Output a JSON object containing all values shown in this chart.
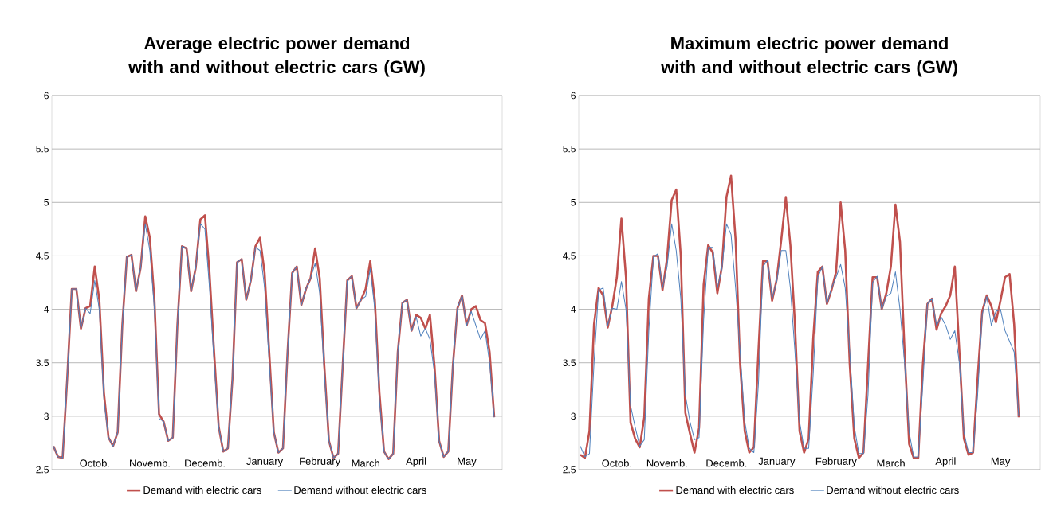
{
  "chart_data": [
    {
      "type": "line",
      "title": "Average electric power demand with and without electric cars (GW)",
      "categories": [
        null,
        null,
        null,
        null,
        null,
        null,
        null,
        null,
        null,
        "Octob.",
        null,
        null,
        null,
        null,
        null,
        null,
        null,
        null,
        null,
        null,
        null,
        "Novemb.",
        null,
        null,
        null,
        null,
        null,
        null,
        null,
        null,
        null,
        null,
        null,
        "Decemb.",
        null,
        null,
        null,
        null,
        null,
        null,
        null,
        null,
        null,
        null,
        null,
        null,
        "January",
        null,
        null,
        null,
        null,
        null,
        null,
        null,
        null,
        null,
        null,
        null,
        "February",
        null,
        null,
        null,
        null,
        null,
        null,
        null,
        null,
        null,
        "March",
        null,
        null,
        null,
        null,
        null,
        null,
        null,
        null,
        null,
        null,
        "April",
        null,
        null,
        null,
        null,
        null,
        null,
        null,
        null,
        null,
        null,
        "May",
        null,
        null,
        null,
        null,
        null,
        null
      ],
      "ylim": [
        2.5,
        6
      ],
      "yticks": [
        2.5,
        3,
        3.5,
        4,
        4.5,
        5,
        5.5,
        6
      ],
      "grid": "y",
      "legend": "bottom",
      "marker": "none",
      "line_style": "solid",
      "series": [
        {
          "name": "Demand with electric cars",
          "color": "#c0504d",
          "values": [
            2.72,
            2.62,
            2.61,
            3.35,
            4.19,
            4.19,
            3.82,
            4.01,
            4.03,
            4.4,
            4.09,
            3.22,
            2.8,
            2.72,
            2.85,
            3.85,
            4.49,
            4.51,
            4.17,
            4.39,
            4.87,
            4.67,
            4.09,
            3.02,
            2.95,
            2.77,
            2.8,
            3.85,
            4.59,
            4.57,
            4.17,
            4.39,
            4.84,
            4.88,
            4.34,
            3.6,
            2.9,
            2.67,
            2.7,
            3.35,
            4.44,
            4.47,
            4.09,
            4.27,
            4.59,
            4.67,
            4.34,
            3.6,
            2.85,
            2.66,
            2.7,
            3.6,
            4.34,
            4.4,
            4.04,
            4.19,
            4.29,
            4.57,
            4.29,
            3.47,
            2.77,
            2.61,
            2.65,
            3.47,
            4.27,
            4.31,
            4.01,
            4.09,
            4.19,
            4.45,
            4.09,
            3.22,
            2.67,
            2.6,
            2.65,
            3.6,
            4.06,
            4.09,
            3.8,
            3.95,
            3.92,
            3.82,
            3.95,
            3.47,
            2.77,
            2.62,
            2.67,
            3.47,
            4.01,
            4.13,
            3.85,
            4.0,
            4.03,
            3.9,
            3.87,
            3.6,
            2.99
          ]
        },
        {
          "name": "Demand without electric cars",
          "color": "#4f81bd",
          "values": [
            2.72,
            2.62,
            2.61,
            3.35,
            4.19,
            4.19,
            3.82,
            4.01,
            3.96,
            4.27,
            4.0,
            3.15,
            2.8,
            2.72,
            2.85,
            3.85,
            4.49,
            4.51,
            4.17,
            4.39,
            4.8,
            4.55,
            4.0,
            2.98,
            2.95,
            2.77,
            2.8,
            3.85,
            4.59,
            4.57,
            4.17,
            4.39,
            4.8,
            4.75,
            4.2,
            3.5,
            2.9,
            2.67,
            2.7,
            3.35,
            4.44,
            4.47,
            4.09,
            4.27,
            4.58,
            4.55,
            4.2,
            3.5,
            2.85,
            2.66,
            2.7,
            3.6,
            4.34,
            4.4,
            4.04,
            4.19,
            4.29,
            4.43,
            4.15,
            3.4,
            2.77,
            2.61,
            2.65,
            3.47,
            4.27,
            4.31,
            4.01,
            4.09,
            4.12,
            4.38,
            4.0,
            3.15,
            2.67,
            2.6,
            2.65,
            3.6,
            4.06,
            4.09,
            3.8,
            3.93,
            3.75,
            3.82,
            3.72,
            3.4,
            2.77,
            2.62,
            2.67,
            3.47,
            4.01,
            4.13,
            3.85,
            3.98,
            3.85,
            3.72,
            3.8,
            3.5,
            2.99
          ]
        }
      ]
    },
    {
      "type": "line",
      "title": "Maximum electric power demand with and without electric cars (GW)",
      "categories": [
        null,
        null,
        null,
        null,
        null,
        null,
        null,
        null,
        "Octob.",
        null,
        null,
        null,
        null,
        null,
        null,
        null,
        null,
        null,
        null,
        "Novemb.",
        null,
        null,
        null,
        null,
        null,
        null,
        null,
        null,
        null,
        null,
        null,
        null,
        "Decemb.",
        null,
        null,
        null,
        null,
        null,
        null,
        null,
        null,
        null,
        null,
        "January",
        null,
        null,
        null,
        null,
        null,
        null,
        null,
        null,
        null,
        null,
        null,
        null,
        "February",
        null,
        null,
        null,
        null,
        null,
        null,
        null,
        null,
        null,
        null,
        null,
        "March",
        null,
        null,
        null,
        null,
        null,
        null,
        null,
        null,
        null,
        null,
        null,
        "April",
        null,
        null,
        null,
        null,
        null,
        null,
        null,
        null,
        null,
        null,
        null,
        "May",
        null,
        null,
        null,
        null
      ],
      "ylim": [
        2.5,
        6
      ],
      "yticks": [
        2.5,
        3,
        3.5,
        4,
        4.5,
        5,
        5.5,
        6
      ],
      "grid": "y",
      "legend": "bottom",
      "marker": "none",
      "line_style": "solid",
      "series": [
        {
          "name": "Demand with electric cars",
          "color": "#c0504d",
          "values": [
            2.64,
            2.61,
            2.86,
            3.86,
            4.2,
            4.13,
            3.83,
            4.03,
            4.3,
            4.85,
            4.3,
            2.94,
            2.79,
            2.71,
            2.99,
            4.1,
            4.5,
            4.5,
            4.18,
            4.48,
            5.02,
            5.12,
            4.5,
            3.03,
            2.84,
            2.66,
            2.89,
            4.23,
            4.6,
            4.53,
            4.15,
            4.4,
            5.05,
            5.25,
            4.65,
            3.48,
            2.86,
            2.66,
            2.71,
            3.61,
            4.45,
            4.45,
            4.08,
            4.28,
            4.65,
            5.05,
            4.6,
            3.86,
            2.86,
            2.66,
            2.79,
            3.73,
            4.35,
            4.4,
            4.05,
            4.18,
            4.35,
            5.0,
            4.55,
            3.48,
            2.79,
            2.61,
            2.66,
            3.48,
            4.3,
            4.3,
            4.0,
            4.15,
            4.4,
            4.98,
            4.63,
            3.61,
            2.74,
            2.61,
            2.61,
            3.48,
            4.05,
            4.1,
            3.81,
            3.96,
            4.03,
            4.13,
            4.4,
            3.61,
            2.79,
            2.64,
            2.66,
            3.36,
            3.98,
            4.13,
            4.03,
            3.88,
            4.08,
            4.3,
            4.33,
            3.86,
            2.99
          ]
        },
        {
          "name": "Demand without electric cars",
          "color": "#4f81bd",
          "values": [
            2.72,
            2.62,
            2.65,
            3.5,
            4.18,
            4.2,
            3.85,
            4.01,
            4.0,
            4.26,
            4.0,
            3.1,
            2.9,
            2.72,
            2.78,
            3.8,
            4.49,
            4.52,
            4.2,
            4.4,
            4.8,
            4.55,
            4.1,
            3.2,
            2.95,
            2.78,
            2.8,
            3.9,
            4.58,
            4.58,
            4.2,
            4.38,
            4.8,
            4.7,
            4.2,
            3.6,
            2.95,
            2.7,
            2.66,
            3.3,
            4.4,
            4.46,
            4.1,
            4.26,
            4.55,
            4.55,
            4.2,
            3.6,
            2.95,
            2.7,
            2.7,
            3.4,
            4.3,
            4.4,
            4.05,
            4.2,
            4.3,
            4.42,
            4.2,
            3.6,
            2.9,
            2.65,
            2.65,
            3.2,
            4.25,
            4.31,
            4.0,
            4.12,
            4.15,
            4.35,
            4.0,
            3.5,
            2.85,
            2.62,
            2.62,
            3.3,
            4.05,
            4.1,
            3.85,
            3.93,
            3.85,
            3.72,
            3.8,
            3.5,
            2.85,
            2.66,
            2.66,
            3.2,
            3.95,
            4.12,
            3.85,
            3.98,
            4.0,
            3.8,
            3.7,
            3.6,
            3.0
          ]
        }
      ]
    }
  ]
}
